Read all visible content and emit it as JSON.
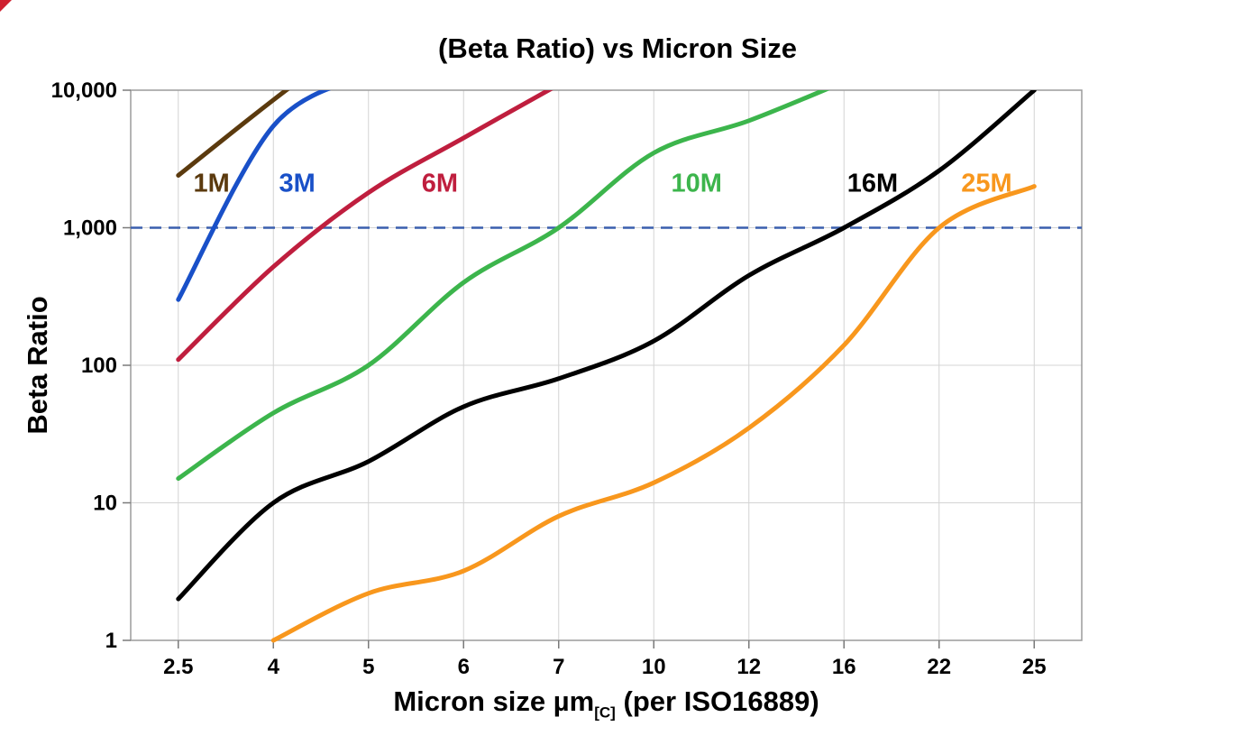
{
  "figure": {
    "title": "(Beta Ratio) vs Micron Size",
    "y_axis_title": "Beta Ratio",
    "x_axis_title_main": "Micron size µm",
    "x_axis_title_sub": "[C]",
    "x_axis_title_tail": "(per ISO16889)"
  },
  "chart_data": {
    "type": "line",
    "title": "(Beta Ratio) vs Micron Size",
    "xlabel": "Micron size µm[C] (per ISO16889)",
    "ylabel": "Beta Ratio",
    "x_categories": [
      "2.5",
      "4",
      "5",
      "6",
      "7",
      "10",
      "12",
      "16",
      "22",
      "25"
    ],
    "y_tick_labels": [
      "1",
      "10",
      "100",
      "1,000",
      "10,000"
    ],
    "y_tick_values": [
      1,
      10,
      100,
      1000,
      10000
    ],
    "y_scale": "log",
    "ylim": [
      1,
      10000
    ],
    "grid": true,
    "legend_position": "inline-labels",
    "reference_line": {
      "value": 1000,
      "style": "dashed",
      "color": "#3a5fae"
    },
    "series": [
      {
        "name": "1M",
        "color": "#5b3a0e",
        "values": [
          2400,
          8500,
          28000,
          null,
          null,
          null,
          null,
          null,
          null,
          null
        ]
      },
      {
        "name": "3M",
        "color": "#1950c8",
        "values": [
          300,
          5500,
          13000,
          null,
          null,
          null,
          null,
          null,
          null,
          null
        ]
      },
      {
        "name": "6M",
        "color": "#bf1e3e",
        "values": [
          110,
          520,
          1800,
          4500,
          11000,
          null,
          null,
          null,
          null,
          null
        ]
      },
      {
        "name": "10M",
        "color": "#3cb54c",
        "values": [
          15,
          45,
          100,
          400,
          1000,
          3500,
          6000,
          11500,
          null,
          null
        ]
      },
      {
        "name": "16M",
        "color": "#000000",
        "values": [
          2,
          10,
          20,
          50,
          80,
          150,
          450,
          1000,
          2600,
          10000
        ]
      },
      {
        "name": "25M",
        "color": "#f8971d",
        "values": [
          null,
          1,
          2.2,
          3.2,
          8,
          14,
          35,
          140,
          1000,
          2000
        ]
      }
    ],
    "series_labels": [
      {
        "text": "1M",
        "color": "#5b3a0e",
        "cat_pos": 0.35,
        "value": 2100
      },
      {
        "text": "3M",
        "color": "#1950c8",
        "cat_pos": 1.25,
        "value": 2100
      },
      {
        "text": "6M",
        "color": "#bf1e3e",
        "cat_pos": 2.75,
        "value": 2100
      },
      {
        "text": "10M",
        "color": "#3cb54c",
        "cat_pos": 5.45,
        "value": 2100
      },
      {
        "text": "16M",
        "color": "#000000",
        "cat_pos": 7.3,
        "value": 2100
      },
      {
        "text": "25M",
        "color": "#f8971d",
        "cat_pos": 8.5,
        "value": 2100
      }
    ],
    "style": {
      "grid_color": "#d4d4d4",
      "border_color": "#9b9b9b",
      "tick_color": "#7a7a7a",
      "line_width": 5
    }
  }
}
